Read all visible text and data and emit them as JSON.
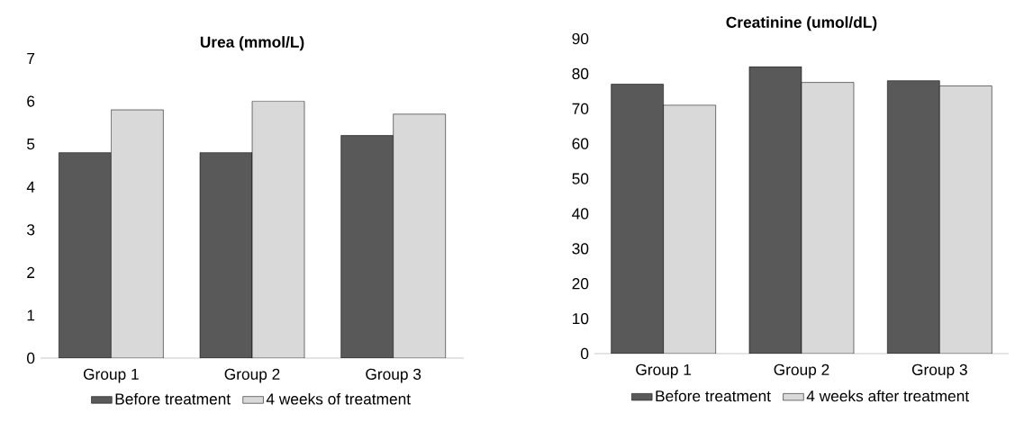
{
  "chart_data": [
    {
      "type": "bar",
      "title": "Urea (mmol/L)",
      "categories": [
        "Group 1",
        "Group 2",
        "Group 3"
      ],
      "series": [
        {
          "name": "Before treatment",
          "color": "#595959",
          "values": [
            4.8,
            4.8,
            5.2
          ]
        },
        {
          "name": "4 weeks of treatment",
          "color": "#d9d9d9",
          "values": [
            5.8,
            6.0,
            5.7
          ]
        }
      ],
      "ylim": [
        0,
        7
      ],
      "yticks": [
        0,
        1,
        2,
        3,
        4,
        5,
        6,
        7
      ],
      "grid": false,
      "legend": "bottom"
    },
    {
      "type": "bar",
      "title": "Creatinine (umol/dL)",
      "categories": [
        "Group 1",
        "Group 2",
        "Group 3"
      ],
      "series": [
        {
          "name": "Before treatment",
          "color": "#595959",
          "values": [
            77,
            82,
            78
          ]
        },
        {
          "name": "4 weeks after treatment",
          "color": "#d9d9d9",
          "values": [
            71,
            77.5,
            76.5
          ]
        }
      ],
      "ylim": [
        0,
        90
      ],
      "yticks": [
        0,
        10,
        20,
        30,
        40,
        50,
        60,
        70,
        80,
        90
      ],
      "grid": false,
      "legend": "bottom"
    }
  ]
}
